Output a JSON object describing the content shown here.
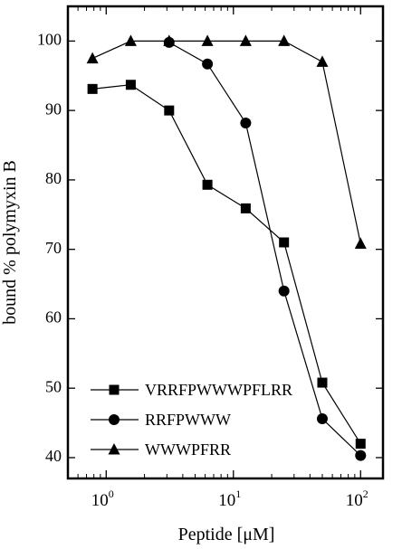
{
  "chart_data": {
    "type": "line",
    "xlabel": "Peptide [μM]",
    "ylabel": "bound % polymyxin B",
    "x_scale": "log",
    "xlim": [
      0.5,
      150
    ],
    "ylim": [
      37,
      105
    ],
    "x_ticks": [
      {
        "base": "10",
        "exp": "0",
        "value": 1
      },
      {
        "base": "10",
        "exp": "1",
        "value": 10
      },
      {
        "base": "10",
        "exp": "2",
        "value": 100
      }
    ],
    "y_ticks": [
      40,
      50,
      60,
      70,
      80,
      90,
      100
    ],
    "grid": false,
    "legend_position": "bottom-left",
    "series": [
      {
        "name": "VRRFPWWWPFLRR",
        "marker": "square",
        "x": [
          0.78,
          1.56,
          3.125,
          6.25,
          12.5,
          25,
          50,
          100
        ],
        "y": [
          93.1,
          93.7,
          90.0,
          79.3,
          75.9,
          71.0,
          50.8,
          42.0
        ]
      },
      {
        "name": "RRFPWWW",
        "marker": "circle",
        "x": [
          3.125,
          6.25,
          12.5,
          25,
          50,
          100
        ],
        "y": [
          99.8,
          96.7,
          88.2,
          64.0,
          45.6,
          40.3
        ]
      },
      {
        "name": "WWWPFRR",
        "marker": "triangle",
        "x": [
          0.78,
          1.56,
          3.125,
          6.25,
          12.5,
          25,
          50,
          100
        ],
        "y": [
          97.5,
          100.0,
          100.0,
          100.0,
          100.0,
          100.0,
          97.0,
          70.8
        ]
      }
    ]
  }
}
